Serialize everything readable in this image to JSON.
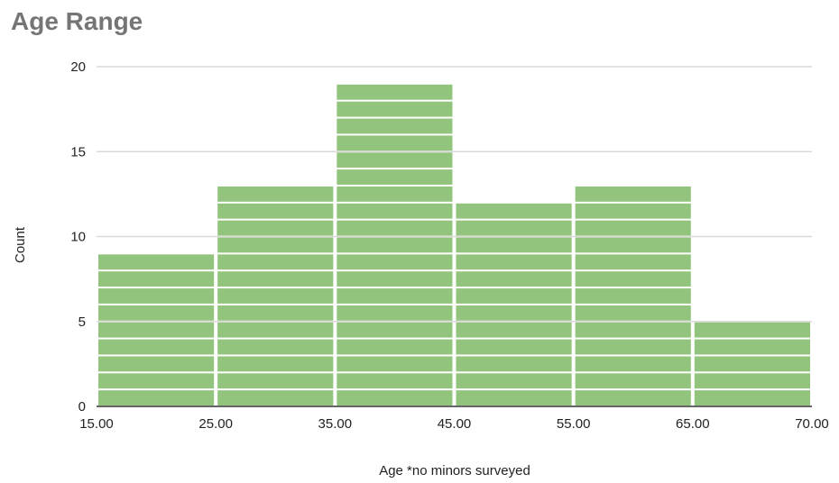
{
  "chart_data": {
    "type": "bar",
    "title": "Age Range",
    "xlabel": "Age  *no minors surveyed",
    "ylabel": "Count",
    "x_ticks": [
      "15.00",
      "25.00",
      "35.00",
      "45.00",
      "55.00",
      "65.00",
      "70.00"
    ],
    "bins": [
      {
        "from": 15,
        "to": 25,
        "count": 9
      },
      {
        "from": 25,
        "to": 35,
        "count": 13
      },
      {
        "from": 35,
        "to": 45,
        "count": 19
      },
      {
        "from": 45,
        "to": 55,
        "count": 12
      },
      {
        "from": 55,
        "to": 65,
        "count": 13
      },
      {
        "from": 65,
        "to": 70,
        "count": 5
      }
    ],
    "ylim": [
      0,
      20
    ],
    "y_ticks": [
      0,
      5,
      10,
      15,
      20
    ],
    "grid": true,
    "bar_color": "#93c47d",
    "stacked_units": true
  }
}
